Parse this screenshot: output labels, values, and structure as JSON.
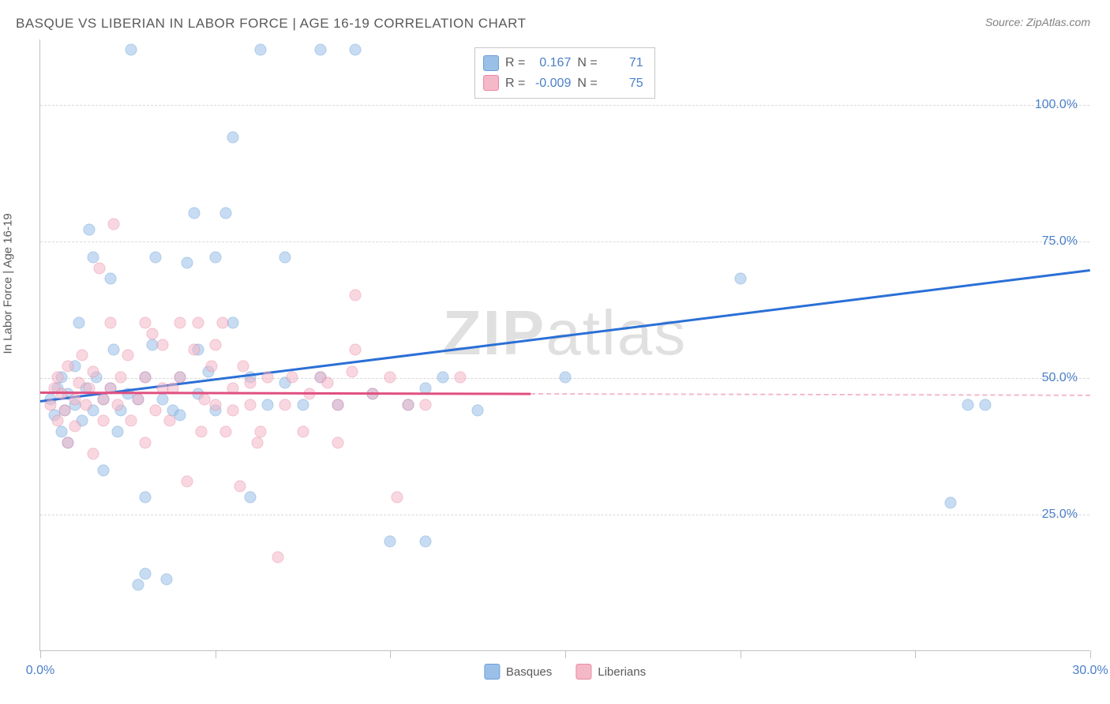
{
  "title": "BASQUE VS LIBERIAN IN LABOR FORCE | AGE 16-19 CORRELATION CHART",
  "source": "Source: ZipAtlas.com",
  "ylabel": "In Labor Force | Age 16-19",
  "watermark_bold": "ZIP",
  "watermark_rest": "atlas",
  "chart": {
    "type": "scatter",
    "xlim": [
      0,
      30
    ],
    "ylim": [
      0,
      112
    ],
    "xticks": [
      0,
      5,
      10,
      15,
      20,
      25,
      30
    ],
    "xtick_labels": {
      "0": "0.0%",
      "30": "30.0%"
    },
    "yticks": [
      25,
      50,
      75,
      100
    ],
    "ytick_labels": [
      "25.0%",
      "50.0%",
      "75.0%",
      "100.0%"
    ],
    "background_color": "#ffffff",
    "grid_color": "#d8d8d8",
    "axis_color": "#c0c0c0",
    "tick_label_color": "#4a7fc9",
    "point_radius": 7.5,
    "point_opacity_fill": 0.35,
    "point_stroke_width": 1.5
  },
  "series": [
    {
      "name": "Basques",
      "color_fill": "#9bc0e8",
      "color_stroke": "#6a9fd8",
      "R": "0.167",
      "N": "71",
      "trend": {
        "x1": 0,
        "y1": 46,
        "x2": 30,
        "y2": 70,
        "solid_until_x": 30,
        "color": "#2b6fd6",
        "width": 2.5
      },
      "points": [
        [
          0.3,
          46
        ],
        [
          0.4,
          43
        ],
        [
          0.5,
          48
        ],
        [
          0.6,
          40
        ],
        [
          0.6,
          50
        ],
        [
          0.7,
          44
        ],
        [
          0.8,
          47
        ],
        [
          0.8,
          38
        ],
        [
          1.0,
          52
        ],
        [
          1.0,
          45
        ],
        [
          1.1,
          60
        ],
        [
          1.2,
          42
        ],
        [
          1.3,
          48
        ],
        [
          1.4,
          77
        ],
        [
          1.5,
          72
        ],
        [
          1.5,
          44
        ],
        [
          1.6,
          50
        ],
        [
          1.8,
          46
        ],
        [
          1.8,
          33
        ],
        [
          2.0,
          48
        ],
        [
          2.0,
          68
        ],
        [
          2.1,
          55
        ],
        [
          2.2,
          40
        ],
        [
          2.3,
          44
        ],
        [
          2.5,
          47
        ],
        [
          2.6,
          110
        ],
        [
          2.8,
          12
        ],
        [
          2.8,
          46
        ],
        [
          3.0,
          50
        ],
        [
          3.0,
          14
        ],
        [
          3.0,
          28
        ],
        [
          3.2,
          56
        ],
        [
          3.3,
          72
        ],
        [
          3.5,
          46
        ],
        [
          3.6,
          13
        ],
        [
          3.8,
          44
        ],
        [
          4.0,
          50
        ],
        [
          4.0,
          43
        ],
        [
          4.2,
          71
        ],
        [
          4.4,
          80
        ],
        [
          4.5,
          47
        ],
        [
          4.5,
          55
        ],
        [
          4.8,
          51
        ],
        [
          5.0,
          72
        ],
        [
          5.0,
          44
        ],
        [
          5.3,
          80
        ],
        [
          5.5,
          94
        ],
        [
          5.5,
          60
        ],
        [
          6.0,
          50
        ],
        [
          6.0,
          28
        ],
        [
          6.3,
          110
        ],
        [
          6.5,
          45
        ],
        [
          7.0,
          72
        ],
        [
          7.0,
          49
        ],
        [
          7.5,
          45
        ],
        [
          8.0,
          110
        ],
        [
          8.0,
          50
        ],
        [
          8.5,
          45
        ],
        [
          9.0,
          110
        ],
        [
          9.5,
          47
        ],
        [
          10.0,
          20
        ],
        [
          10.5,
          45
        ],
        [
          11.0,
          48
        ],
        [
          11.0,
          20
        ],
        [
          11.5,
          50
        ],
        [
          12.5,
          44
        ],
        [
          15.0,
          50
        ],
        [
          20.0,
          68
        ],
        [
          26.0,
          27
        ],
        [
          26.5,
          45
        ],
        [
          27.0,
          45
        ]
      ]
    },
    {
      "name": "Liberians",
      "color_fill": "#f5b8c8",
      "color_stroke": "#e88aa3",
      "R": "-0.009",
      "N": "75",
      "trend": {
        "x1": 0,
        "y1": 47.5,
        "x2": 30,
        "y2": 47,
        "solid_until_x": 14,
        "color": "#e05080",
        "width": 2.5
      },
      "points": [
        [
          0.3,
          45
        ],
        [
          0.4,
          48
        ],
        [
          0.5,
          42
        ],
        [
          0.5,
          50
        ],
        [
          0.6,
          47
        ],
        [
          0.7,
          44
        ],
        [
          0.8,
          38
        ],
        [
          0.8,
          52
        ],
        [
          1.0,
          46
        ],
        [
          1.0,
          41
        ],
        [
          1.1,
          49
        ],
        [
          1.2,
          54
        ],
        [
          1.3,
          45
        ],
        [
          1.4,
          48
        ],
        [
          1.5,
          36
        ],
        [
          1.5,
          51
        ],
        [
          1.7,
          70
        ],
        [
          1.8,
          46
        ],
        [
          1.8,
          42
        ],
        [
          2.0,
          48
        ],
        [
          2.0,
          60
        ],
        [
          2.1,
          78
        ],
        [
          2.2,
          45
        ],
        [
          2.3,
          50
        ],
        [
          2.5,
          54
        ],
        [
          2.6,
          42
        ],
        [
          2.8,
          46
        ],
        [
          3.0,
          60
        ],
        [
          3.0,
          50
        ],
        [
          3.0,
          38
        ],
        [
          3.2,
          58
        ],
        [
          3.3,
          44
        ],
        [
          3.5,
          48
        ],
        [
          3.5,
          56
        ],
        [
          3.7,
          42
        ],
        [
          3.8,
          48
        ],
        [
          4.0,
          50
        ],
        [
          4.0,
          60
        ],
        [
          4.2,
          31
        ],
        [
          4.4,
          55
        ],
        [
          4.5,
          60
        ],
        [
          4.6,
          40
        ],
        [
          4.7,
          46
        ],
        [
          4.9,
          52
        ],
        [
          5.0,
          56
        ],
        [
          5.0,
          45
        ],
        [
          5.2,
          60
        ],
        [
          5.3,
          40
        ],
        [
          5.5,
          48
        ],
        [
          5.5,
          44
        ],
        [
          5.7,
          30
        ],
        [
          5.8,
          52
        ],
        [
          6.0,
          49
        ],
        [
          6.0,
          45
        ],
        [
          6.2,
          38
        ],
        [
          6.3,
          40
        ],
        [
          6.5,
          50
        ],
        [
          6.8,
          17
        ],
        [
          7.0,
          45
        ],
        [
          7.2,
          50
        ],
        [
          7.5,
          40
        ],
        [
          7.7,
          47
        ],
        [
          8.0,
          50
        ],
        [
          8.2,
          49
        ],
        [
          8.5,
          45
        ],
        [
          8.5,
          38
        ],
        [
          8.9,
          51
        ],
        [
          9.0,
          55
        ],
        [
          9.0,
          65
        ],
        [
          9.5,
          47
        ],
        [
          10.0,
          50
        ],
        [
          10.2,
          28
        ],
        [
          10.5,
          45
        ],
        [
          11.0,
          45
        ],
        [
          12.0,
          50
        ]
      ]
    }
  ],
  "stats_labels": {
    "R": "R =",
    "N": "N ="
  },
  "legend": {
    "basques": "Basques",
    "liberians": "Liberians"
  }
}
